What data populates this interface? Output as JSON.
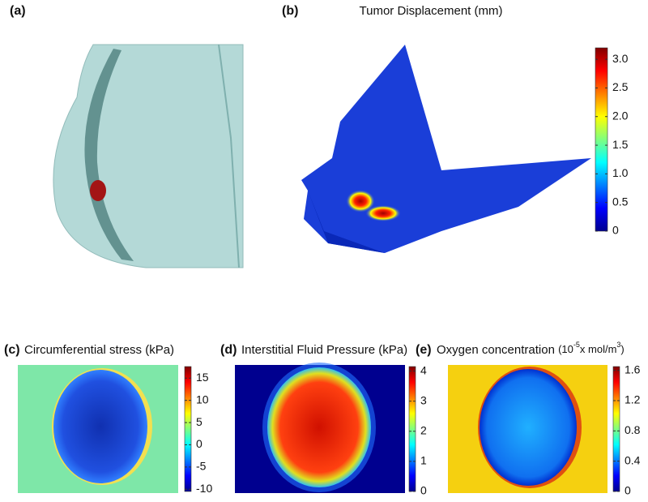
{
  "panels": [
    {
      "label": "(a)"
    },
    {
      "label": "(b)",
      "title": "Tumor Displacement (mm)",
      "colorbar": {
        "lim": [
          0,
          3.2
        ],
        "ticks": [
          0,
          0.5,
          {
            "value": 1,
            "label": "1.0"
          },
          1.5,
          {
            "value": 2,
            "label": "2.0"
          },
          2.5,
          {
            "value": 3,
            "label": "3.0"
          }
        ]
      }
    },
    {
      "label": "(c)",
      "title": "Circumferential stress (kPa)",
      "colorbar": {
        "lim": [
          -10.5,
          17.6
        ],
        "ticks": [
          -10,
          -5,
          0,
          5,
          10,
          15
        ]
      }
    },
    {
      "label": "(d)",
      "title": "Interstitial Fluid Pressure (kPa)",
      "colorbar": {
        "lim": [
          0,
          4.15
        ],
        "ticks": [
          0,
          1,
          2,
          3,
          4
        ]
      }
    },
    {
      "label": "(e)",
      "title": "Oxygen concentration",
      "unit": [
        "(10",
        "-5",
        "x mol/m",
        "3",
        ")"
      ],
      "colorbar": {
        "lim": [
          0,
          1.65
        ],
        "ticks": [
          0,
          0.4,
          0.8,
          1.2,
          1.6
        ]
      }
    }
  ]
}
